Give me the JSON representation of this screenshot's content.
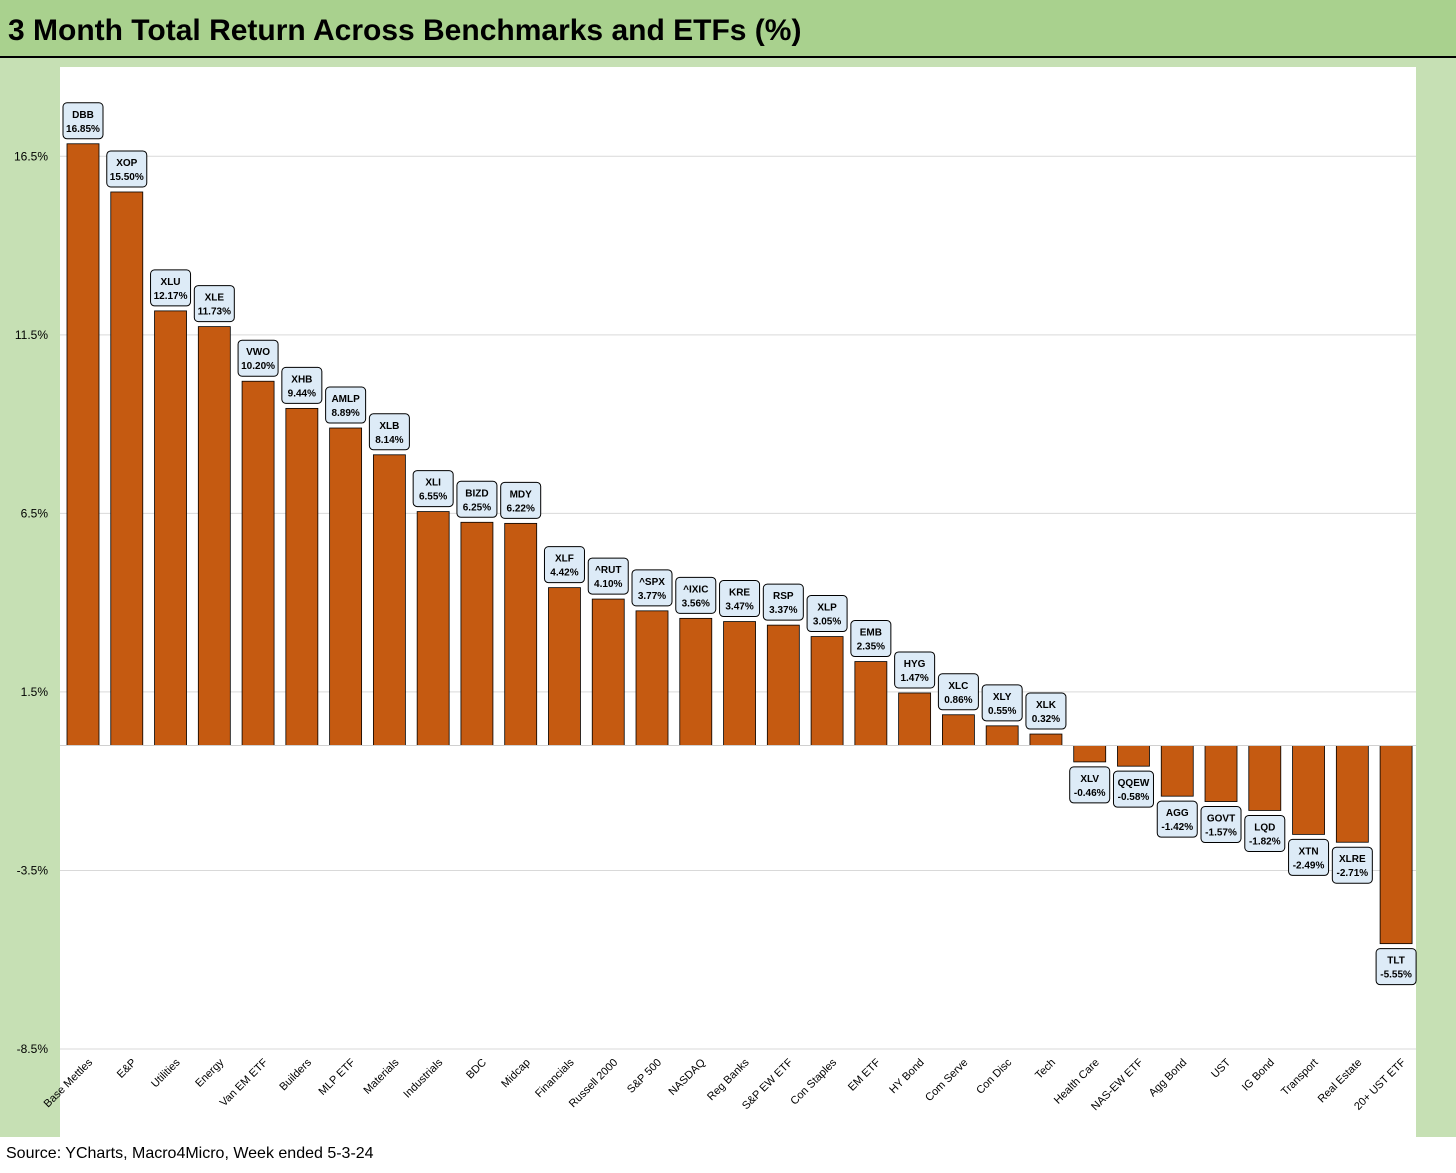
{
  "title": "3 Month Total Return Across Benchmarks and ETFs (%)",
  "source": "Source: YCharts, Macro4Micro, Week ended 5-3-24",
  "colors": {
    "bar": "#c55a11",
    "label_fill": "#ddebf7",
    "background": "#c6e0b4",
    "title_bar": "#a9d18e"
  },
  "chart_data": {
    "type": "bar",
    "title": "3 Month Total Return Across Benchmarks and ETFs (%)",
    "xlabel": "",
    "ylabel": "",
    "ylim": [
      -8.5,
      19.0
    ],
    "yticks": [
      -8.5,
      -3.5,
      1.5,
      6.5,
      11.5,
      16.5
    ],
    "ytick_labels": [
      "-8.5%",
      "-3.5%",
      "1.5%",
      "6.5%",
      "11.5%",
      "16.5%"
    ],
    "grid": true,
    "legend": "none",
    "categories": [
      "Base Mettles",
      "E&P",
      "Utilities",
      "Energy",
      "Van EM ETF",
      "Builders",
      "MLP ETF",
      "Materials",
      "Industrials",
      "BDC",
      "Midcap",
      "Financials",
      "Russell 2000",
      "S&P 500",
      "NASDAQ",
      "Reg Banks",
      "S&P EW ETF",
      "Con Staples",
      "EM ETF",
      "HY Bond",
      "Com Serve",
      "Con Disc",
      "Tech",
      "Health Care",
      "NAS-EW ETF",
      "Agg Bond",
      "UST",
      "IG Bond",
      "Transport",
      "Real Estate",
      "20+ UST ETF"
    ],
    "tickers": [
      "DBB",
      "XOP",
      "XLU",
      "XLE",
      "VWO",
      "XHB",
      "AMLP",
      "XLB",
      "XLI",
      "BIZD",
      "MDY",
      "XLF",
      "^RUT",
      "^SPX",
      "^IXIC",
      "KRE",
      "RSP",
      "XLP",
      "EMB",
      "HYG",
      "XLC",
      "XLY",
      "XLK",
      "XLV",
      "QQEW",
      "AGG",
      "GOVT",
      "LQD",
      "XTN",
      "XLRE",
      "TLT"
    ],
    "value_labels": [
      "16.85%",
      "15.50%",
      "12.17%",
      "11.73%",
      "10.20%",
      "9.44%",
      "8.89%",
      "8.14%",
      "6.55%",
      "6.25%",
      "6.22%",
      "4.42%",
      "4.10%",
      "3.77%",
      "3.56%",
      "3.47%",
      "3.37%",
      "3.05%",
      "2.35%",
      "1.47%",
      "0.86%",
      "0.55%",
      "0.32%",
      "-0.46%",
      "-0.58%",
      "-1.42%",
      "-1.57%",
      "-1.82%",
      "-2.49%",
      "-2.71%",
      "-5.55%"
    ],
    "values": [
      16.85,
      15.5,
      12.17,
      11.73,
      10.2,
      9.44,
      8.89,
      8.14,
      6.55,
      6.25,
      6.22,
      4.42,
      4.1,
      3.77,
      3.56,
      3.47,
      3.37,
      3.05,
      2.35,
      1.47,
      0.86,
      0.55,
      0.32,
      -0.46,
      -0.58,
      -1.42,
      -1.57,
      -1.82,
      -2.49,
      -2.71,
      -5.55
    ]
  }
}
